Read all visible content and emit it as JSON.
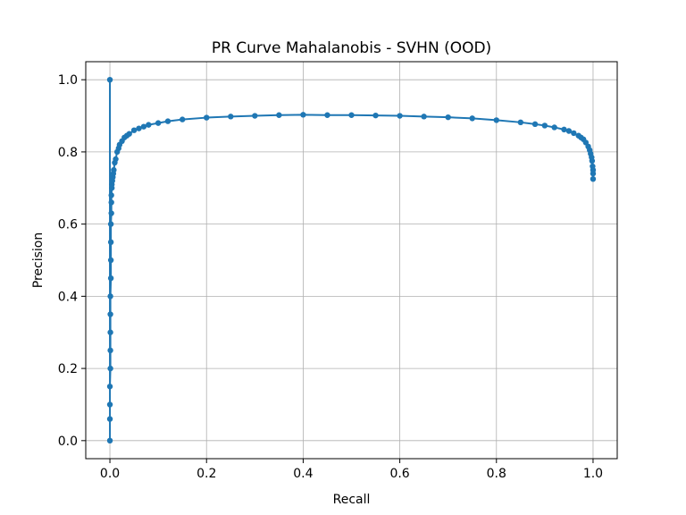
{
  "chart_data": {
    "type": "line",
    "title": "PR Curve Mahalanobis - SVHN (OOD)",
    "xlabel": "Recall",
    "ylabel": "Precision",
    "xlim": [
      -0.05,
      1.05
    ],
    "ylim": [
      -0.05,
      1.05
    ],
    "xticks": [
      0.0,
      0.2,
      0.4,
      0.6,
      0.8,
      1.0
    ],
    "yticks": [
      0.0,
      0.2,
      0.4,
      0.6,
      0.8,
      1.0
    ],
    "xtick_labels": [
      "0.0",
      "0.2",
      "0.4",
      "0.6",
      "0.8",
      "1.0"
    ],
    "ytick_labels": [
      "0.0",
      "0.2",
      "0.4",
      "0.6",
      "0.8",
      "1.0"
    ],
    "grid": true,
    "marker": "point",
    "color": "#1f77b4",
    "series": [
      {
        "x": [
          0.0,
          0.0,
          0.0,
          0.0,
          0.0,
          0.001,
          0.001,
          0.001,
          0.001,
          0.001,
          0.002,
          0.002,
          0.002,
          0.002,
          0.003,
          0.003,
          0.003,
          0.004,
          0.004,
          0.005,
          0.006,
          0.007,
          0.008,
          0.01,
          0.012,
          0.015,
          0.018,
          0.02,
          0.025,
          0.03,
          0.035,
          0.04,
          0.05,
          0.06,
          0.07,
          0.08,
          0.1,
          0.12,
          0.15,
          0.2,
          0.25,
          0.3,
          0.35,
          0.4,
          0.45,
          0.5,
          0.55,
          0.6,
          0.65,
          0.7,
          0.75,
          0.8,
          0.85,
          0.88,
          0.9,
          0.92,
          0.94,
          0.95,
          0.96,
          0.97,
          0.975,
          0.98,
          0.985,
          0.99,
          0.993,
          0.995,
          0.997,
          0.998,
          0.999,
          1.0,
          1.0,
          1.0
        ],
        "y": [
          1.0,
          0.0,
          0.06,
          0.1,
          0.15,
          0.2,
          0.25,
          0.3,
          0.35,
          0.4,
          0.45,
          0.5,
          0.55,
          0.6,
          0.63,
          0.66,
          0.68,
          0.7,
          0.71,
          0.72,
          0.73,
          0.74,
          0.75,
          0.77,
          0.78,
          0.8,
          0.81,
          0.82,
          0.83,
          0.84,
          0.845,
          0.85,
          0.86,
          0.865,
          0.87,
          0.875,
          0.88,
          0.885,
          0.89,
          0.895,
          0.898,
          0.9,
          0.902,
          0.903,
          0.902,
          0.902,
          0.901,
          0.9,
          0.898,
          0.896,
          0.893,
          0.888,
          0.882,
          0.877,
          0.873,
          0.868,
          0.862,
          0.858,
          0.852,
          0.845,
          0.84,
          0.835,
          0.826,
          0.815,
          0.805,
          0.795,
          0.785,
          0.775,
          0.76,
          0.75,
          0.74,
          0.725
        ]
      }
    ]
  }
}
